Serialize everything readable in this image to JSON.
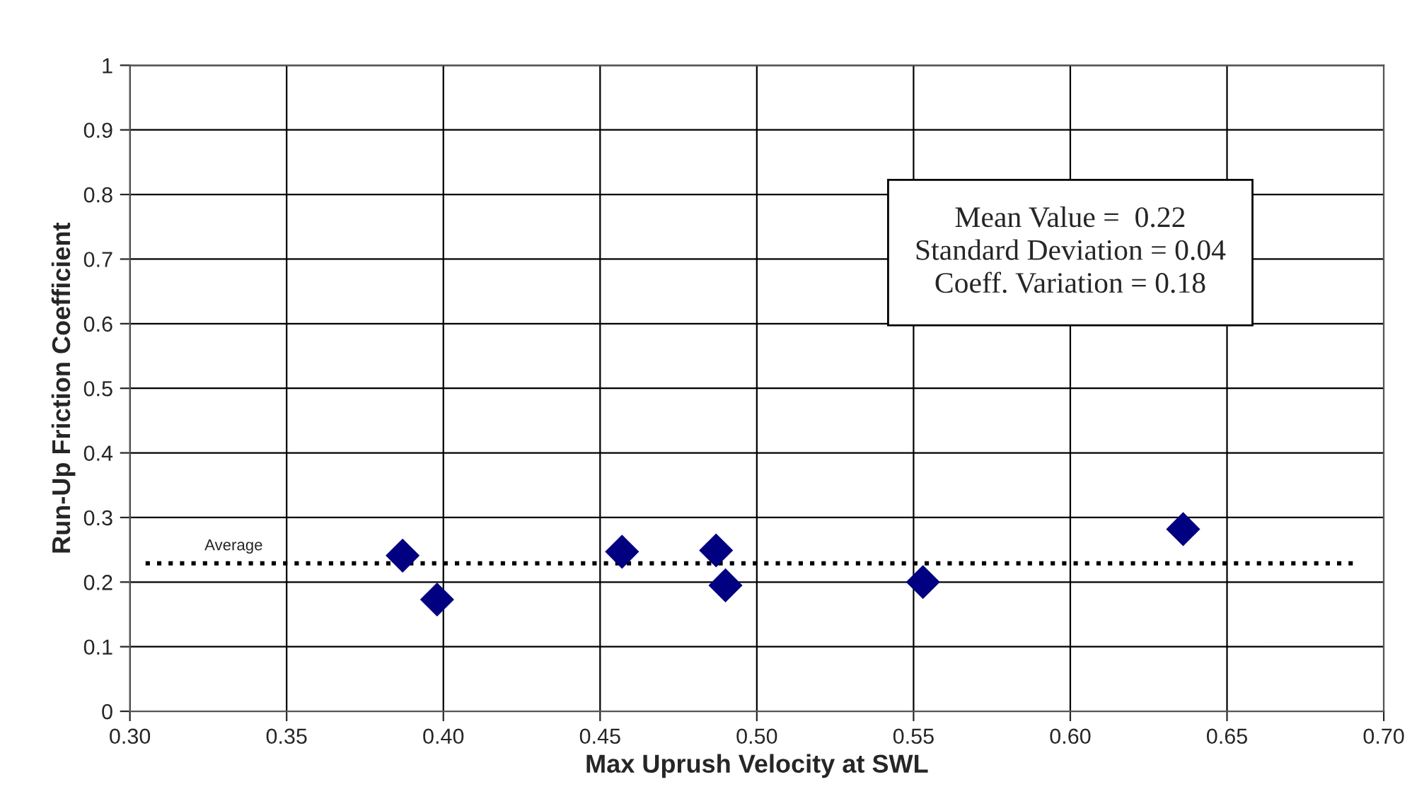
{
  "chart_data": {
    "type": "scatter",
    "xlabel": "Max Uprush Velocity at SWL",
    "ylabel": "Run-Up Friction Coefficient",
    "x": [
      0.387,
      0.398,
      0.457,
      0.487,
      0.49,
      0.553,
      0.636
    ],
    "series": [
      {
        "color": "#000080",
        "values": [
          0.241,
          0.173,
          0.247,
          0.249,
          0.195,
          0.2,
          0.282
        ],
        "marker": "diamond"
      },
      {
        "name": "Average",
        "type": "line",
        "color": "#000000",
        "x": [
          0.305,
          0.691
        ],
        "values": [
          0.229,
          0.229
        ],
        "line_style": "dotted",
        "marker": "none"
      }
    ],
    "annotations": [
      "Mean Value =  0.22\nStandard Deviation = 0.04\nCoeff. Variation = 0.18"
    ],
    "xlim": [
      0.3,
      0.7
    ],
    "xticks": [
      {
        "value": 0.3,
        "label": "0.30"
      },
      {
        "value": 0.35,
        "label": "0.35"
      },
      {
        "value": 0.4,
        "label": "0.40"
      },
      {
        "value": 0.45,
        "label": "0.45"
      },
      {
        "value": 0.5,
        "label": "0.50"
      },
      {
        "value": 0.55,
        "label": "0.55"
      },
      {
        "value": 0.6,
        "label": "0.60"
      },
      {
        "value": 0.65,
        "label": "0.65"
      },
      {
        "value": 0.7,
        "label": "0.70"
      }
    ],
    "ylim": [
      0,
      1
    ],
    "yticks": [
      0,
      0.1,
      0.2,
      0.3,
      0.4,
      0.5,
      0.6,
      0.7,
      0.8,
      0.9,
      1
    ],
    "grid": true,
    "legend": false
  }
}
